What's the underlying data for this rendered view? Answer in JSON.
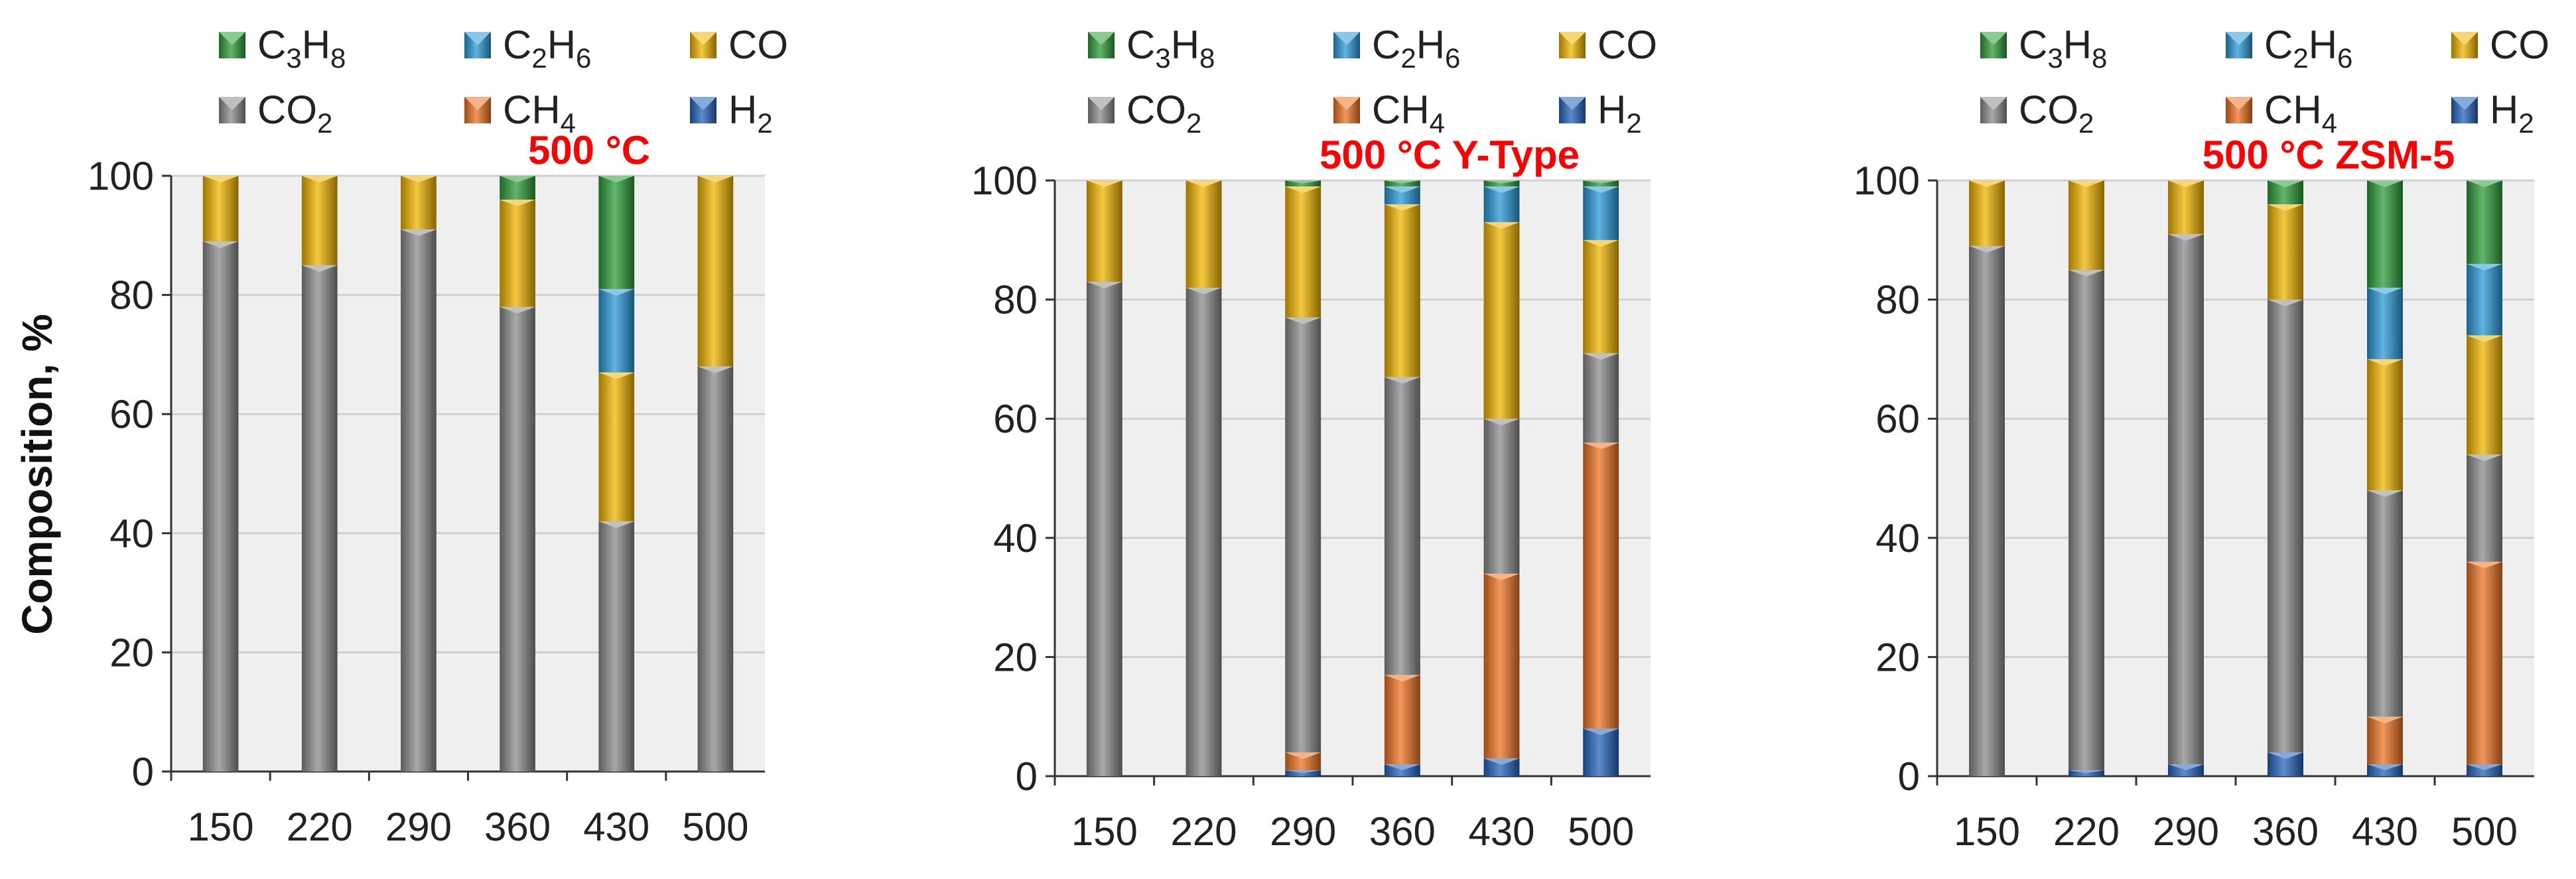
{
  "figure": {
    "ylabel": "Composition, %",
    "title_color": "#ff0000"
  },
  "legend": [
    {
      "key": "C3H8",
      "base": "C",
      "sub1": "3",
      "mid": "H",
      "sub2": "8",
      "color": "#2e9e3a"
    },
    {
      "key": "C2H6",
      "base": "C",
      "sub1": "2",
      "mid": "H",
      "sub2": "6",
      "color": "#2a9ad8"
    },
    {
      "key": "CO",
      "base": "CO",
      "sub1": "",
      "mid": "",
      "sub2": "",
      "color": "#f2b600"
    },
    {
      "key": "CO2",
      "base": "CO",
      "sub1": "2",
      "mid": "",
      "sub2": "",
      "color": "#8c8c8c"
    },
    {
      "key": "CH4",
      "base": "CH",
      "sub1": "4",
      "mid": "",
      "sub2": "",
      "color": "#ee7424"
    },
    {
      "key": "H2",
      "base": "H",
      "sub1": "2",
      "mid": "",
      "sub2": "",
      "color": "#2564be"
    }
  ],
  "chart_data": [
    {
      "type": "bar",
      "stacked": true,
      "title": "500 °C",
      "xlabel": "",
      "ylabel": "Composition, %",
      "ylim": [
        0,
        100
      ],
      "yticks": [
        0,
        20,
        40,
        60,
        80,
        100
      ],
      "grid": true,
      "categories": [
        "150",
        "220",
        "290",
        "360",
        "430",
        "500"
      ],
      "series": [
        {
          "name": "H2",
          "values": [
            0,
            0,
            0,
            0,
            0,
            0
          ]
        },
        {
          "name": "CH4",
          "values": [
            0,
            0,
            0,
            0,
            0,
            0
          ]
        },
        {
          "name": "CO2",
          "values": [
            89,
            85,
            91,
            78,
            42,
            68
          ]
        },
        {
          "name": "CO",
          "values": [
            11,
            15,
            9,
            18,
            25,
            32
          ]
        },
        {
          "name": "C2H6",
          "values": [
            0,
            0,
            0,
            0,
            14,
            0
          ]
        },
        {
          "name": "C3H8",
          "values": [
            0,
            0,
            0,
            4,
            19,
            0
          ]
        }
      ]
    },
    {
      "type": "bar",
      "stacked": true,
      "title": "500 °C Y-Type",
      "xlabel": "",
      "ylabel": "",
      "ylim": [
        0,
        100
      ],
      "yticks": [
        0,
        20,
        40,
        60,
        80,
        100
      ],
      "grid": true,
      "categories": [
        "150",
        "220",
        "290",
        "360",
        "430",
        "500"
      ],
      "series": [
        {
          "name": "H2",
          "values": [
            0,
            0,
            1,
            2,
            3,
            8
          ]
        },
        {
          "name": "CH4",
          "values": [
            0,
            0,
            3,
            15,
            31,
            48
          ]
        },
        {
          "name": "CO2",
          "values": [
            83,
            82,
            73,
            50,
            26,
            15
          ]
        },
        {
          "name": "CO",
          "values": [
            17,
            18,
            22,
            29,
            33,
            19
          ]
        },
        {
          "name": "C2H6",
          "values": [
            0,
            0,
            0,
            3,
            6,
            9
          ]
        },
        {
          "name": "C3H8",
          "values": [
            0,
            0,
            1,
            1,
            1,
            1
          ]
        }
      ]
    },
    {
      "type": "bar",
      "stacked": true,
      "title": "500 °C ZSM-5",
      "xlabel": "",
      "ylabel": "",
      "ylim": [
        0,
        100
      ],
      "yticks": [
        0,
        20,
        40,
        60,
        80,
        100
      ],
      "grid": true,
      "categories": [
        "150",
        "220",
        "290",
        "360",
        "430",
        "500"
      ],
      "series": [
        {
          "name": "H2",
          "values": [
            0,
            1,
            2,
            4,
            2,
            2
          ]
        },
        {
          "name": "CH4",
          "values": [
            0,
            0,
            0,
            0,
            8,
            34
          ]
        },
        {
          "name": "CO2",
          "values": [
            89,
            84,
            89,
            76,
            38,
            18
          ]
        },
        {
          "name": "CO",
          "values": [
            11,
            15,
            9,
            16,
            22,
            20
          ]
        },
        {
          "name": "C2H6",
          "values": [
            0,
            0,
            0,
            0,
            12,
            12
          ]
        },
        {
          "name": "C3H8",
          "values": [
            0,
            0,
            0,
            4,
            18,
            14
          ]
        }
      ]
    }
  ]
}
